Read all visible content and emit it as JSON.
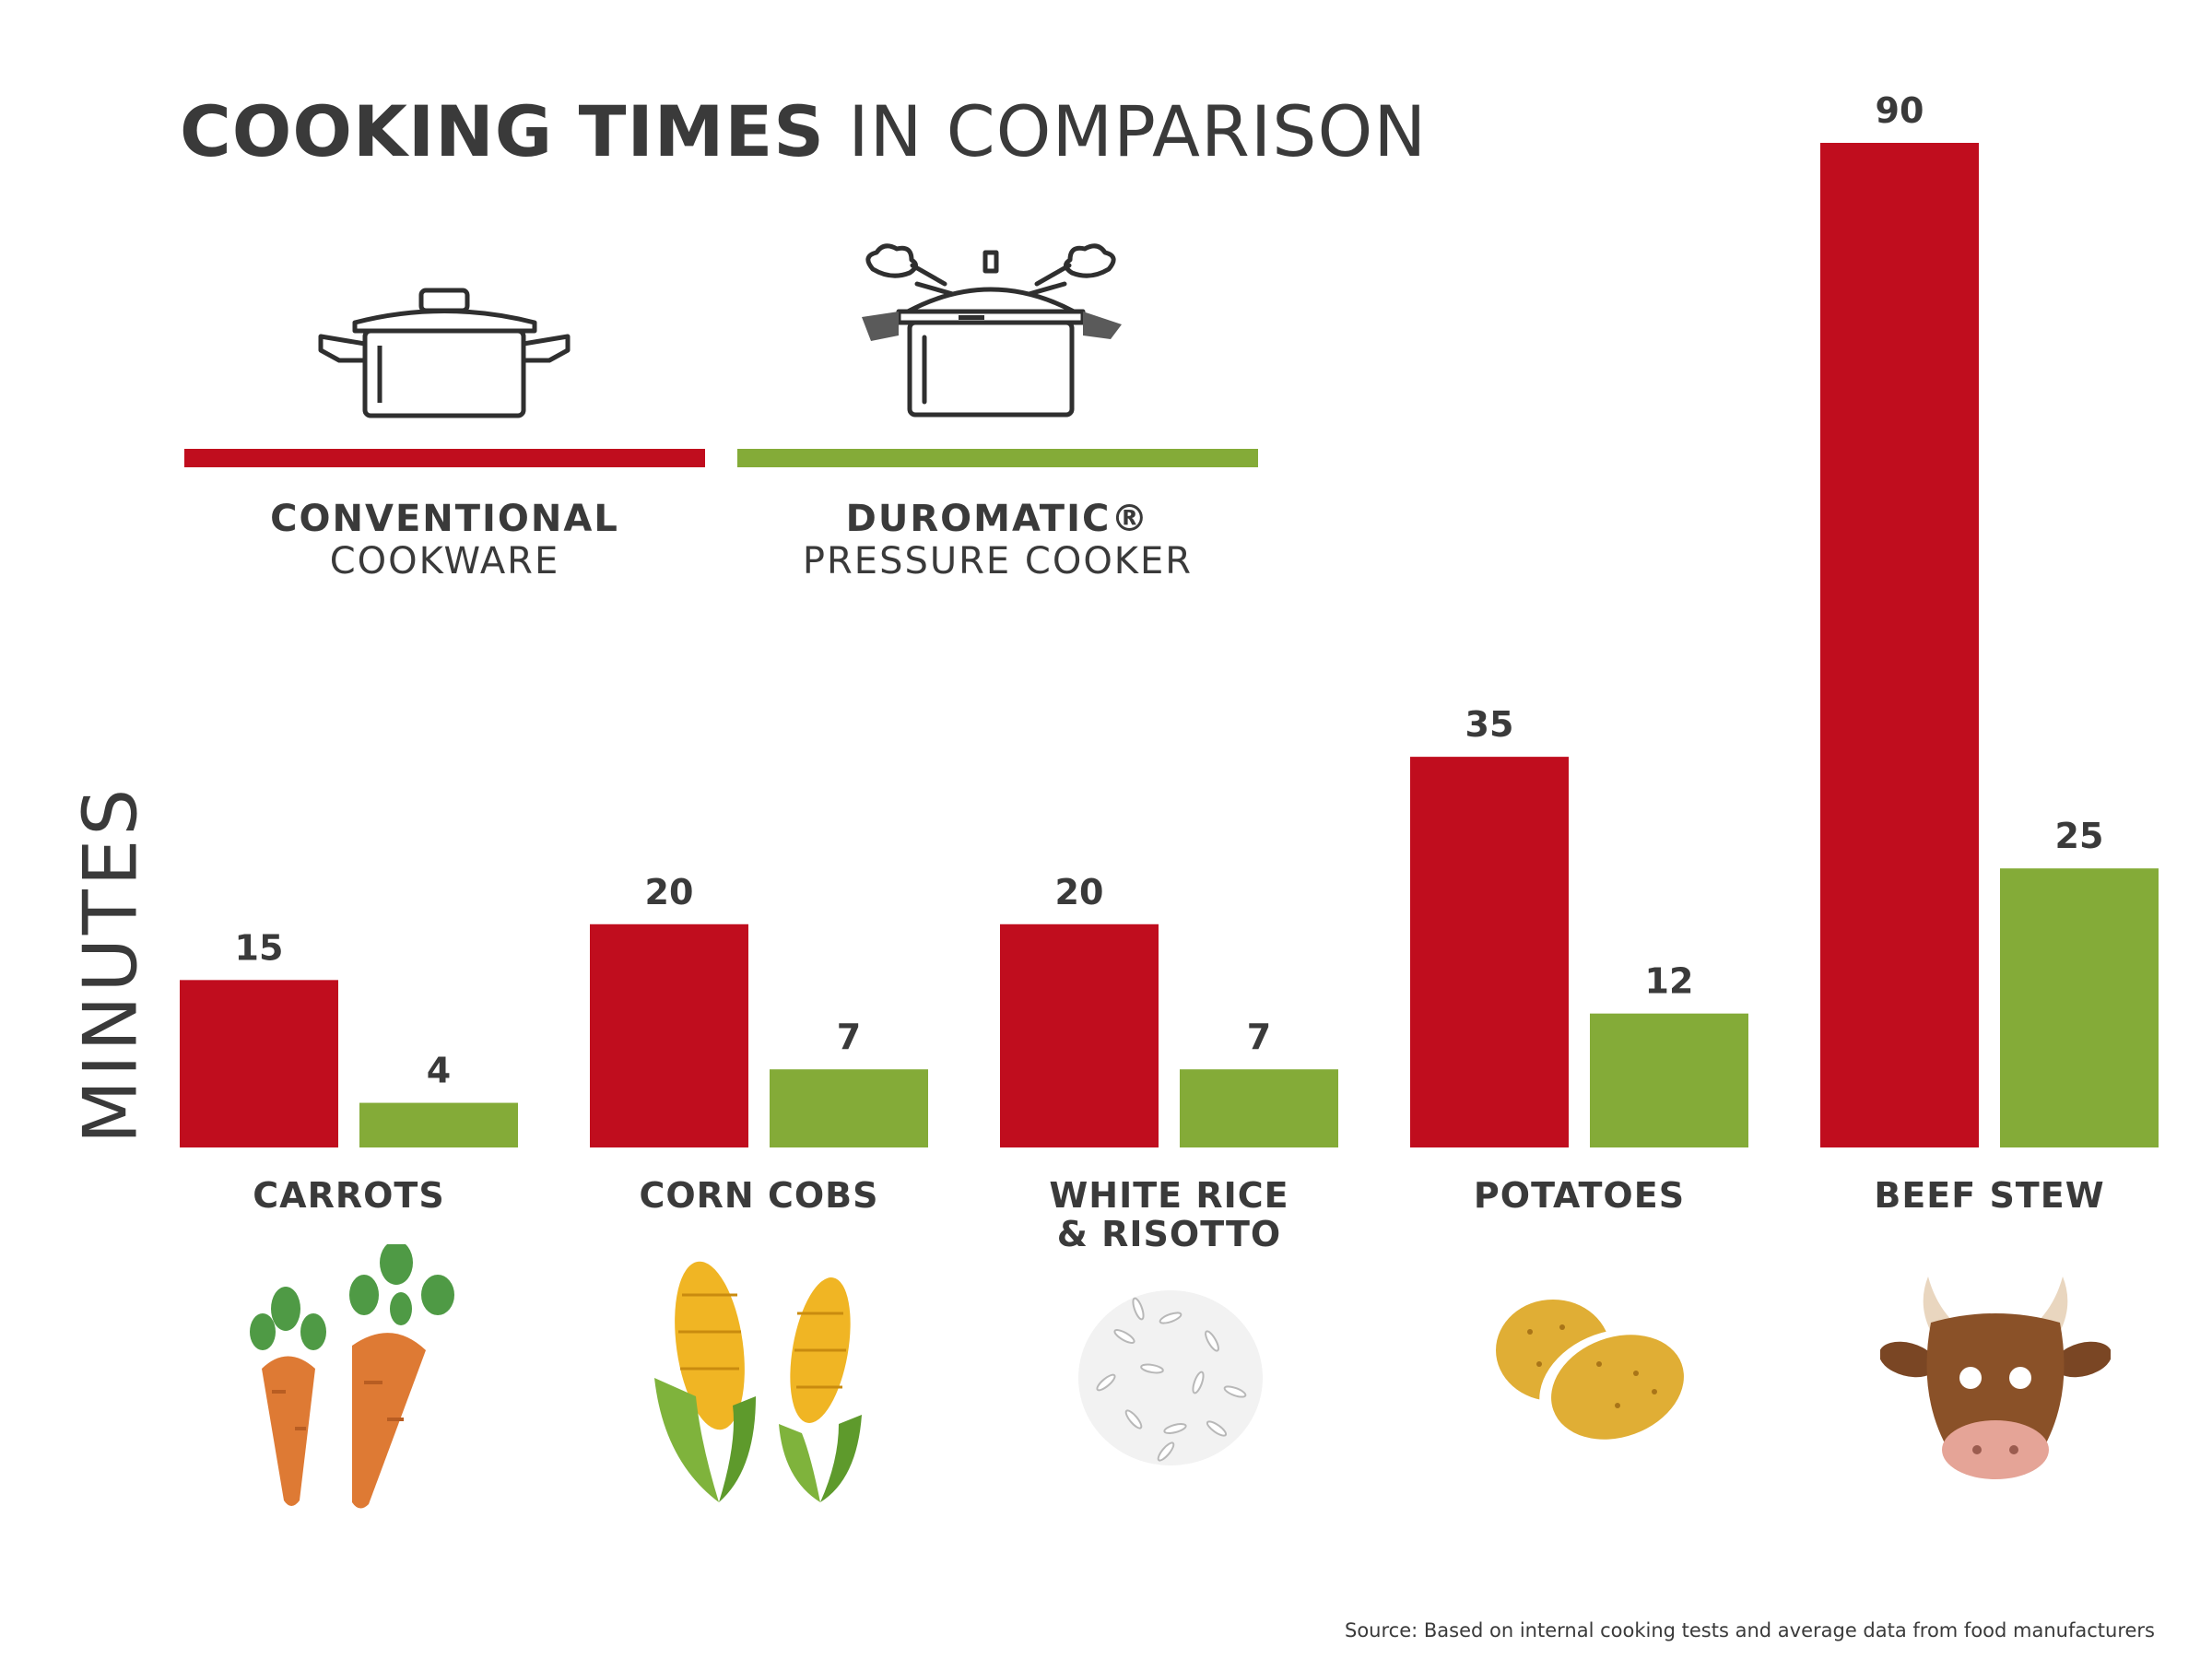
{
  "title": {
    "bold": "COOKING TIMES",
    "light": "IN COMPARISON"
  },
  "legend": [
    {
      "bold": "CONVENTIONAL",
      "normal": "COOKWARE",
      "color": "#c00d1e",
      "icon": "pot-icon"
    },
    {
      "bold": "DUROMATIC®",
      "normal": "PRESSURE COOKER",
      "color": "#84ab38",
      "icon": "pressure-cooker-icon"
    }
  ],
  "source": "Source: Based on internal cooking tests and average data from food manufacturers",
  "chart_data": {
    "type": "bar",
    "title": "COOKING TIMES IN COMPARISON",
    "ylabel": "MINUTES",
    "xlabel": "",
    "ylim": [
      0,
      90
    ],
    "grid": false,
    "categories": [
      {
        "lines": [
          "CARROTS"
        ],
        "icon": "carrot-icon"
      },
      {
        "lines": [
          "CORN COBS"
        ],
        "icon": "corn-icon"
      },
      {
        "lines": [
          "WHITE RICE",
          "& RISOTTO"
        ],
        "icon": "rice-icon"
      },
      {
        "lines": [
          "POTATOES"
        ],
        "icon": "potato-icon"
      },
      {
        "lines": [
          "BEEF STEW"
        ],
        "icon": "cow-icon"
      }
    ],
    "series": [
      {
        "name": "CONVENTIONAL COOKWARE",
        "color": "#c00d1e",
        "values": [
          15,
          20,
          20,
          35,
          90
        ]
      },
      {
        "name": "DUROMATIC® PRESSURE COOKER",
        "color": "#84ab38",
        "values": [
          4,
          7,
          7,
          12,
          25
        ]
      }
    ]
  }
}
